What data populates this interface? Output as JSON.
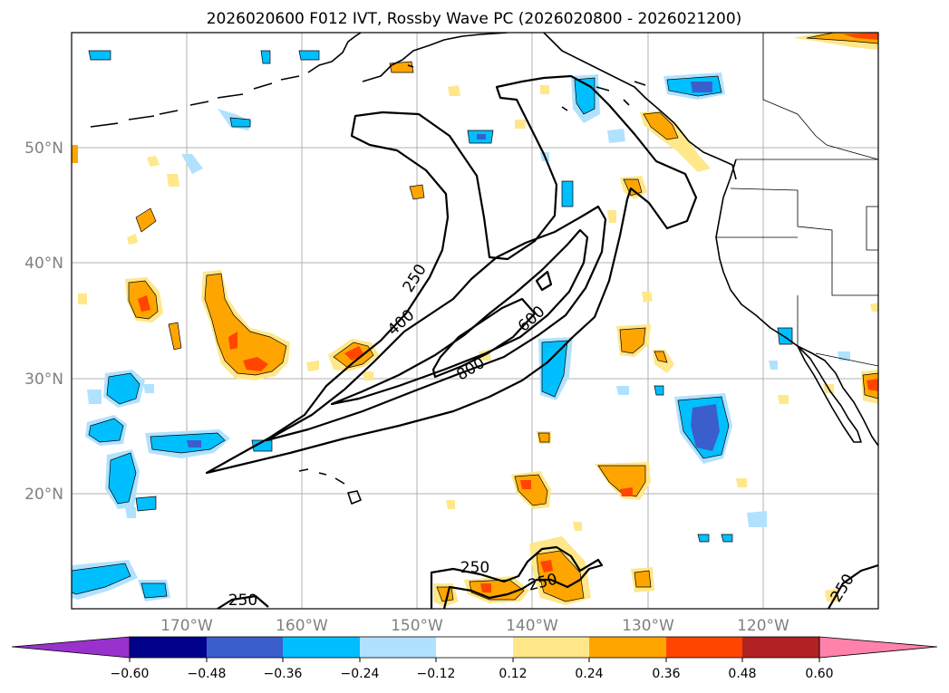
{
  "title": "2026020600 F012 IVT, Rossby Wave PC (2026020800 - 2026021200)",
  "axes": {
    "lat_labels": [
      "50°N",
      "40°N",
      "30°N",
      "20°N"
    ],
    "lon_labels": [
      "170°W",
      "160°W",
      "150°W",
      "140°W",
      "130°W",
      "120°W"
    ]
  },
  "contour_labels": [
    "250",
    "400",
    "600",
    "800",
    "250",
    "250",
    "250",
    "250"
  ],
  "colorbar": {
    "ticks": [
      "−0.60",
      "−0.48",
      "−0.36",
      "−0.24",
      "−0.12",
      "0.12",
      "0.24",
      "0.36",
      "0.48",
      "0.60"
    ],
    "colors": [
      "#9932cc",
      "#00008b",
      "#3a5fcd",
      "#00bfff",
      "#b0e2ff",
      "#ffffff",
      "#ffe78a",
      "#ffa500",
      "#ff4500",
      "#b22222",
      "#ff82ab"
    ]
  },
  "map_data": {
    "type": "contour-map",
    "field": "IVT",
    "contour_levels": [
      250,
      400,
      600,
      800
    ],
    "shading": "Rossby Wave PC",
    "shading_bounds": [
      -0.6,
      -0.48,
      -0.36,
      -0.24,
      -0.12,
      0.12,
      0.24,
      0.36,
      0.48,
      0.6
    ],
    "lon_range": [
      -180,
      -110
    ],
    "lat_range": [
      10,
      60
    ]
  }
}
